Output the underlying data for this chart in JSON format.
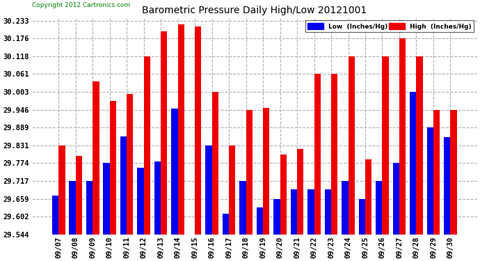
{
  "title": "Barometric Pressure Daily High/Low 20121001",
  "copyright": "Copyright 2012 Cartronics.com",
  "background_color": "#ffffff",
  "plot_bg_color": "#ffffff",
  "grid_color": "#b0b0b0",
  "bar_low_color": "#0000ee",
  "bar_high_color": "#ee0000",
  "legend_low_color": "#0000ee",
  "legend_high_color": "#ee0000",
  "ylim_min": 29.544,
  "ylim_max": 30.2444,
  "yticks": [
    29.544,
    29.602,
    29.659,
    29.717,
    29.774,
    29.831,
    29.889,
    29.946,
    30.003,
    30.061,
    30.118,
    30.176,
    30.233
  ],
  "categories": [
    "09/07",
    "09/08",
    "09/09",
    "09/10",
    "09/11",
    "09/12",
    "09/13",
    "09/14",
    "09/15",
    "09/16",
    "09/17",
    "09/18",
    "09/19",
    "09/20",
    "09/21",
    "09/22",
    "09/23",
    "09/24",
    "09/25",
    "09/26",
    "09/27",
    "09/28",
    "09/29",
    "09/30"
  ],
  "low_values": [
    29.67,
    29.717,
    29.717,
    29.774,
    29.86,
    29.76,
    29.78,
    29.95,
    29.544,
    29.831,
    29.61,
    29.717,
    29.63,
    29.659,
    29.689,
    29.689,
    29.689,
    29.717,
    29.659,
    29.717,
    29.774,
    30.003,
    29.889,
    29.858
  ],
  "high_values": [
    29.831,
    29.797,
    30.038,
    29.974,
    29.998,
    30.118,
    30.2,
    30.221,
    30.215,
    30.003,
    29.831,
    29.946,
    29.952,
    29.802,
    29.82,
    30.061,
    30.061,
    30.118,
    29.785,
    30.118,
    30.176,
    30.118,
    29.946,
    29.946
  ]
}
